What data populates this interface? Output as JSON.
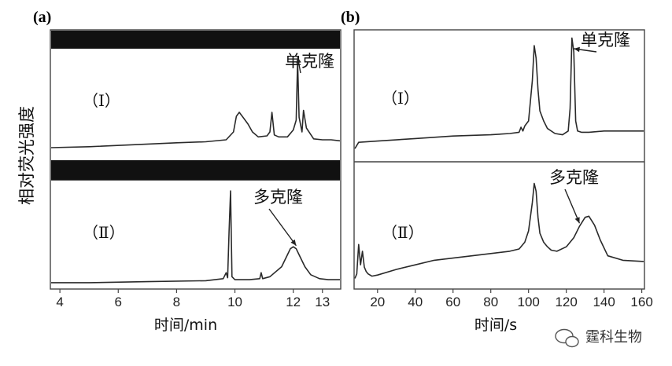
{
  "figure": {
    "y_axis_label": "相对荧光强度",
    "watermark": "霆科生物"
  },
  "chart_data": [
    {
      "panel": "(a)",
      "type": "line",
      "xlabel": "时间/min",
      "xticks": [
        4,
        6,
        8,
        10,
        12,
        13
      ],
      "xlim": [
        3.7,
        13.6
      ],
      "subplots": [
        {
          "label": "（Ⅰ）",
          "annotation": "单克隆",
          "annotation_target_x": 12.15,
          "x": [
            3.7,
            5.0,
            6.5,
            8.0,
            9.0,
            9.7,
            9.95,
            10.05,
            10.15,
            10.3,
            10.45,
            10.6,
            10.8,
            11.1,
            11.2,
            11.27,
            11.35,
            11.5,
            11.8,
            12.0,
            12.1,
            12.15,
            12.2,
            12.3,
            12.35,
            12.45,
            12.7,
            13.0,
            13.3,
            13.6
          ],
          "y": [
            0.04,
            0.05,
            0.07,
            0.09,
            0.1,
            0.12,
            0.2,
            0.36,
            0.4,
            0.34,
            0.28,
            0.2,
            0.15,
            0.16,
            0.2,
            0.4,
            0.17,
            0.15,
            0.15,
            0.22,
            0.32,
            0.93,
            0.35,
            0.2,
            0.42,
            0.24,
            0.13,
            0.12,
            0.12,
            0.11
          ]
        },
        {
          "label": "（Ⅱ）",
          "annotation": "多克隆",
          "annotation_target_x": 12.1,
          "x": [
            3.7,
            5.0,
            7.0,
            9.0,
            9.6,
            9.7,
            9.75,
            9.8,
            9.85,
            9.9,
            10.0,
            10.5,
            10.85,
            10.9,
            10.95,
            11.2,
            11.6,
            11.8,
            11.9,
            12.0,
            12.1,
            12.2,
            12.4,
            12.6,
            12.9,
            13.2,
            13.6
          ],
          "y": [
            0.04,
            0.04,
            0.05,
            0.06,
            0.08,
            0.14,
            0.09,
            0.55,
            0.96,
            0.1,
            0.07,
            0.07,
            0.08,
            0.14,
            0.08,
            0.1,
            0.2,
            0.32,
            0.38,
            0.4,
            0.38,
            0.32,
            0.2,
            0.12,
            0.08,
            0.07,
            0.07
          ]
        }
      ]
    },
    {
      "panel": "(b)",
      "type": "line",
      "xlabel": "时间/s",
      "xticks": [
        20,
        40,
        60,
        80,
        100,
        120,
        140,
        160
      ],
      "xlim": [
        8,
        161
      ],
      "subplots": [
        {
          "label": "（Ⅰ）",
          "annotation": "单克隆",
          "annotation_target_x": 124,
          "x": [
            8,
            10,
            20,
            40,
            60,
            80,
            90,
            95,
            96,
            97,
            98,
            100,
            102,
            103,
            104,
            105,
            106,
            108,
            110,
            114,
            118,
            121,
            122,
            123,
            124,
            125,
            126,
            128,
            132,
            140,
            150,
            161
          ],
          "y": [
            0.08,
            0.13,
            0.14,
            0.16,
            0.18,
            0.19,
            0.2,
            0.21,
            0.25,
            0.22,
            0.26,
            0.3,
            0.62,
            0.9,
            0.8,
            0.55,
            0.38,
            0.3,
            0.24,
            0.2,
            0.19,
            0.22,
            0.4,
            0.96,
            0.85,
            0.3,
            0.22,
            0.21,
            0.21,
            0.22,
            0.22,
            0.22
          ]
        },
        {
          "label": "（Ⅱ）",
          "annotation": "多克隆",
          "annotation_target_x": 127,
          "x": [
            8,
            9,
            10,
            11,
            12,
            13,
            14,
            15,
            17,
            20,
            30,
            40,
            50,
            60,
            70,
            80,
            90,
            95,
            98,
            100,
            102,
            103,
            104,
            105,
            106,
            108,
            110,
            112,
            115,
            120,
            124,
            127,
            130,
            132,
            135,
            138,
            142,
            150,
            161
          ],
          "y": [
            0.08,
            0.12,
            0.38,
            0.2,
            0.32,
            0.18,
            0.14,
            0.12,
            0.1,
            0.11,
            0.16,
            0.2,
            0.24,
            0.26,
            0.28,
            0.3,
            0.32,
            0.34,
            0.4,
            0.5,
            0.75,
            0.92,
            0.85,
            0.62,
            0.48,
            0.4,
            0.36,
            0.33,
            0.32,
            0.36,
            0.44,
            0.54,
            0.62,
            0.63,
            0.55,
            0.42,
            0.28,
            0.24,
            0.23
          ]
        }
      ]
    }
  ]
}
